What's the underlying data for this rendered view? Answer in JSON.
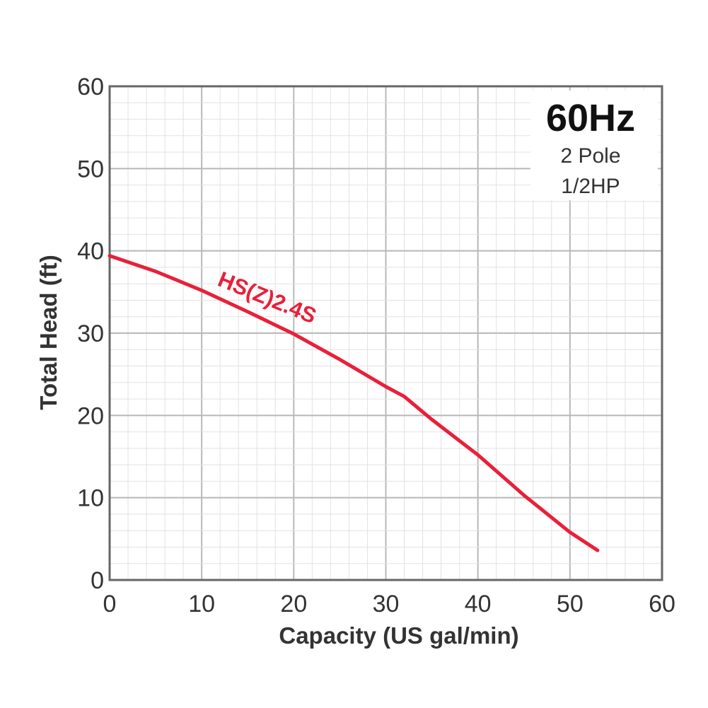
{
  "chart_data": {
    "type": "line",
    "title": "",
    "xlabel": "Capacity (US gal/min)",
    "ylabel": "Total Head (ft)",
    "xlim": [
      0,
      60
    ],
    "ylim": [
      0,
      60
    ],
    "x_ticks": [
      "0",
      "10",
      "20",
      "30",
      "40",
      "50",
      "60"
    ],
    "y_ticks": [
      "0",
      "10",
      "20",
      "30",
      "40",
      "50",
      "60"
    ],
    "grid": true,
    "legend": {
      "placement": "top-right",
      "frequency": "60Hz",
      "poles": "2 Pole",
      "power": "1/2HP"
    },
    "series": [
      {
        "name": "HS(Z)2.4S",
        "color": "#e8203a",
        "x": [
          0,
          5,
          10,
          15,
          20,
          25,
          30,
          32,
          35,
          40,
          45,
          50,
          53
        ],
        "y": [
          39.4,
          37.5,
          35.2,
          32.6,
          29.9,
          26.8,
          23.5,
          22.3,
          19.5,
          15.2,
          10.3,
          5.8,
          3.6
        ]
      }
    ]
  }
}
